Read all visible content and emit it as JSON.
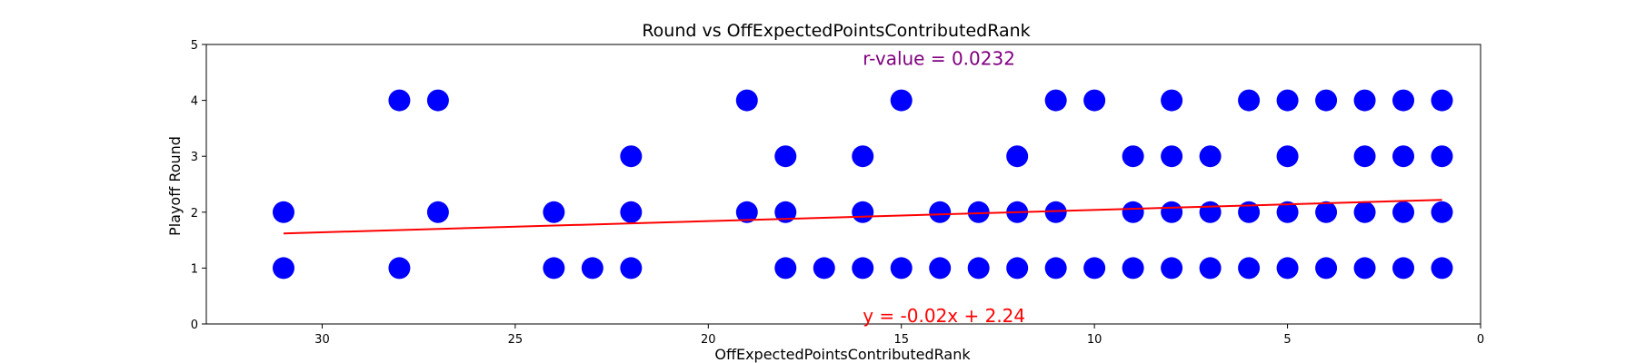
{
  "chart_data": {
    "type": "scatter",
    "title": "Round vs OffExpectedPointsContributedRank",
    "xlabel": "OffExpectedPointsContributedRank",
    "ylabel": "Playoff Round",
    "xlim": [
      33,
      0
    ],
    "ylim": [
      0,
      5
    ],
    "x_inverted": true,
    "x_ticks": [
      30,
      25,
      20,
      15,
      10,
      5,
      0
    ],
    "y_ticks": [
      0,
      1,
      2,
      3,
      4,
      5
    ],
    "grid": false,
    "point_color": "#0000ff",
    "line_color": "#ff0000",
    "points": [
      [
        31,
        2
      ],
      [
        31,
        1
      ],
      [
        28,
        4
      ],
      [
        28,
        1
      ],
      [
        27,
        4
      ],
      [
        27,
        2
      ],
      [
        24,
        2
      ],
      [
        24,
        1
      ],
      [
        23,
        1
      ],
      [
        22,
        3
      ],
      [
        22,
        2
      ],
      [
        22,
        1
      ],
      [
        19,
        4
      ],
      [
        19,
        2
      ],
      [
        18,
        3
      ],
      [
        18,
        2
      ],
      [
        18,
        1
      ],
      [
        17,
        1
      ],
      [
        16,
        3
      ],
      [
        16,
        2
      ],
      [
        16,
        1
      ],
      [
        15,
        4
      ],
      [
        15,
        1
      ],
      [
        14,
        2
      ],
      [
        14,
        1
      ],
      [
        13,
        2
      ],
      [
        13,
        1
      ],
      [
        12,
        3
      ],
      [
        12,
        2
      ],
      [
        12,
        1
      ],
      [
        11,
        4
      ],
      [
        11,
        2
      ],
      [
        11,
        1
      ],
      [
        10,
        4
      ],
      [
        10,
        1
      ],
      [
        9,
        3
      ],
      [
        9,
        2
      ],
      [
        9,
        1
      ],
      [
        8,
        4
      ],
      [
        8,
        3
      ],
      [
        8,
        2
      ],
      [
        8,
        1
      ],
      [
        7,
        3
      ],
      [
        7,
        2
      ],
      [
        7,
        1
      ],
      [
        6,
        4
      ],
      [
        6,
        2
      ],
      [
        6,
        1
      ],
      [
        5,
        4
      ],
      [
        5,
        3
      ],
      [
        5,
        2
      ],
      [
        5,
        1
      ],
      [
        4,
        4
      ],
      [
        4,
        2
      ],
      [
        4,
        1
      ],
      [
        3,
        4
      ],
      [
        3,
        3
      ],
      [
        3,
        2
      ],
      [
        3,
        1
      ],
      [
        2,
        4
      ],
      [
        2,
        3
      ],
      [
        2,
        2
      ],
      [
        2,
        1
      ],
      [
        1,
        4
      ],
      [
        1,
        3
      ],
      [
        1,
        2
      ],
      [
        1,
        1
      ]
    ],
    "trendline": {
      "slope": -0.02,
      "intercept": 2.24,
      "x_range": [
        31,
        1
      ]
    },
    "r_value_text": "r-value = 0.0232",
    "equation_text": "y = -0.02x + 2.24"
  }
}
